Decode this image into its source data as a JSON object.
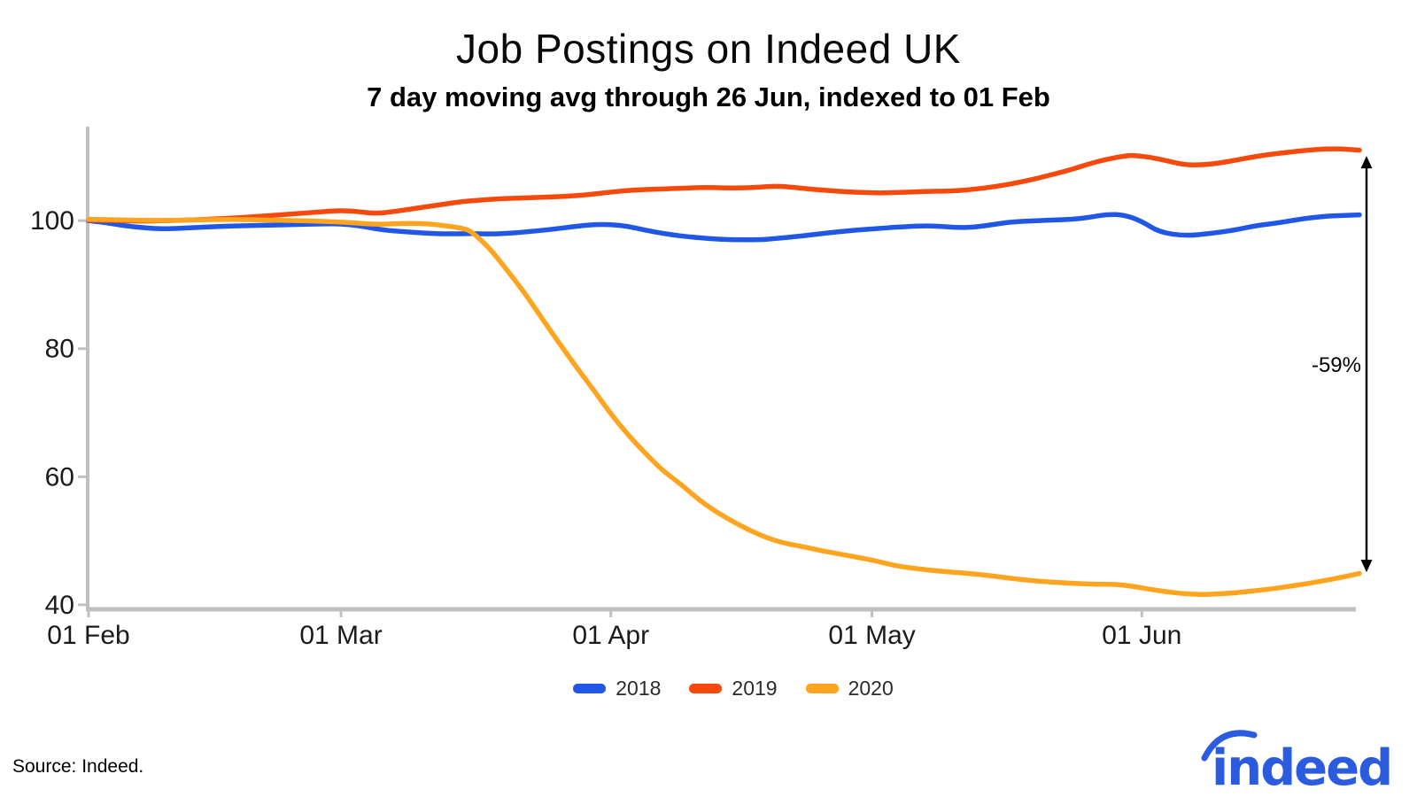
{
  "header": {
    "title": "Job Postings on Indeed UK",
    "subtitle": "7 day moving avg through 26 Jun, indexed to 01 Feb"
  },
  "footer": {
    "source": "Source: Indeed.",
    "logo_text": "indeed",
    "logo_color": "#2b5ce0"
  },
  "legend": [
    {
      "label": "2018",
      "color": "#2157e6"
    },
    {
      "label": "2019",
      "color": "#f64a0d"
    },
    {
      "label": "2020",
      "color": "#ffa41e"
    }
  ],
  "chart_data": {
    "type": "line",
    "title": "Job Postings on Indeed UK",
    "subtitle": "7 day moving avg through 26 Jun, indexed to 01 Feb",
    "x_unit": "days since 01 Feb 2020",
    "x_ticks": [
      {
        "day": 0,
        "label": "01 Feb"
      },
      {
        "day": 29,
        "label": "01 Mar"
      },
      {
        "day": 60,
        "label": "01 Apr"
      },
      {
        "day": 90,
        "label": "01 May"
      },
      {
        "day": 121,
        "label": "01 Jun"
      }
    ],
    "y_ticks": [
      100,
      80,
      60,
      40
    ],
    "ylim": [
      39.3,
      114.4
    ],
    "grid": false,
    "legend_position": "bottom",
    "axis_color": "#c0c0c0",
    "annotation": {
      "label": "-59%",
      "day": 146,
      "from_value": 110.1,
      "to_value": 45.1
    },
    "series": [
      {
        "name": "2018",
        "color": "#2157e6",
        "points": [
          [
            0,
            100.0
          ],
          [
            2,
            99.7
          ],
          [
            4,
            99.2
          ],
          [
            7,
            98.8
          ],
          [
            9,
            98.7
          ],
          [
            12,
            98.9
          ],
          [
            15,
            99.1
          ],
          [
            18,
            99.2
          ],
          [
            21,
            99.3
          ],
          [
            24,
            99.4
          ],
          [
            27,
            99.5
          ],
          [
            29,
            99.5
          ],
          [
            31,
            99.2
          ],
          [
            34,
            98.5
          ],
          [
            36,
            98.3
          ],
          [
            38,
            98.1
          ],
          [
            41,
            97.9
          ],
          [
            44,
            98.0
          ],
          [
            46,
            97.9
          ],
          [
            48,
            98.0
          ],
          [
            50,
            98.2
          ],
          [
            53,
            98.6
          ],
          [
            56,
            99.1
          ],
          [
            58,
            99.4
          ],
          [
            60,
            99.4
          ],
          [
            62,
            99.1
          ],
          [
            64,
            98.5
          ],
          [
            66,
            98.0
          ],
          [
            68,
            97.6
          ],
          [
            71,
            97.2
          ],
          [
            74,
            97.0
          ],
          [
            77,
            97.0
          ],
          [
            79,
            97.2
          ],
          [
            82,
            97.6
          ],
          [
            85,
            98.1
          ],
          [
            88,
            98.5
          ],
          [
            90,
            98.7
          ],
          [
            93,
            99.0
          ],
          [
            96,
            99.2
          ],
          [
            98,
            99.1
          ],
          [
            100,
            98.9
          ],
          [
            102,
            99.0
          ],
          [
            104,
            99.4
          ],
          [
            106,
            99.8
          ],
          [
            109,
            100.0
          ],
          [
            111,
            100.1
          ],
          [
            113,
            100.2
          ],
          [
            115,
            100.5
          ],
          [
            117,
            101.0
          ],
          [
            119,
            100.9
          ],
          [
            121,
            99.9
          ],
          [
            123,
            98.2
          ],
          [
            126,
            97.6
          ],
          [
            129,
            98.0
          ],
          [
            132,
            98.6
          ],
          [
            134,
            99.2
          ],
          [
            137,
            99.7
          ],
          [
            139,
            100.2
          ],
          [
            142,
            100.7
          ],
          [
            144,
            100.8
          ],
          [
            146,
            100.9
          ]
        ]
      },
      {
        "name": "2019",
        "color": "#f64a0d",
        "points": [
          [
            0,
            100.1
          ],
          [
            3,
            100.0
          ],
          [
            6,
            99.9
          ],
          [
            9,
            100.0
          ],
          [
            12,
            100.1
          ],
          [
            15,
            100.3
          ],
          [
            18,
            100.5
          ],
          [
            21,
            100.8
          ],
          [
            24,
            101.1
          ],
          [
            26,
            101.3
          ],
          [
            29,
            101.6
          ],
          [
            31,
            101.4
          ],
          [
            33,
            101.1
          ],
          [
            35,
            101.4
          ],
          [
            37,
            101.8
          ],
          [
            39,
            102.2
          ],
          [
            41,
            102.6
          ],
          [
            43,
            103.0
          ],
          [
            45,
            103.2
          ],
          [
            47,
            103.4
          ],
          [
            49,
            103.5
          ],
          [
            51,
            103.6
          ],
          [
            53,
            103.7
          ],
          [
            55,
            103.8
          ],
          [
            57,
            104.0
          ],
          [
            59,
            104.3
          ],
          [
            61,
            104.6
          ],
          [
            63,
            104.8
          ],
          [
            65,
            104.9
          ],
          [
            67,
            105.0
          ],
          [
            69,
            105.1
          ],
          [
            71,
            105.2
          ],
          [
            73,
            105.1
          ],
          [
            75,
            105.1
          ],
          [
            77,
            105.2
          ],
          [
            79,
            105.4
          ],
          [
            81,
            105.2
          ],
          [
            83,
            104.9
          ],
          [
            85,
            104.7
          ],
          [
            87,
            104.5
          ],
          [
            89,
            104.4
          ],
          [
            91,
            104.3
          ],
          [
            93,
            104.4
          ],
          [
            95,
            104.5
          ],
          [
            97,
            104.6
          ],
          [
            99,
            104.6
          ],
          [
            101,
            104.8
          ],
          [
            103,
            105.1
          ],
          [
            105,
            105.5
          ],
          [
            107,
            106.0
          ],
          [
            109,
            106.6
          ],
          [
            111,
            107.3
          ],
          [
            113,
            108.0
          ],
          [
            115,
            108.9
          ],
          [
            117,
            109.6
          ],
          [
            119,
            110.1
          ],
          [
            120,
            110.2
          ],
          [
            122,
            109.9
          ],
          [
            124,
            109.3
          ],
          [
            126,
            108.7
          ],
          [
            128,
            108.7
          ],
          [
            130,
            109.0
          ],
          [
            132,
            109.5
          ],
          [
            134,
            110.0
          ],
          [
            136,
            110.4
          ],
          [
            138,
            110.7
          ],
          [
            140,
            111.0
          ],
          [
            142,
            111.2
          ],
          [
            144,
            111.2
          ],
          [
            146,
            111.0
          ]
        ]
      },
      {
        "name": "2020",
        "color": "#ffa41e",
        "points": [
          [
            0,
            100.2
          ],
          [
            4,
            100.1
          ],
          [
            8,
            100.0
          ],
          [
            12,
            100.1
          ],
          [
            16,
            100.2
          ],
          [
            20,
            100.1
          ],
          [
            24,
            100.0
          ],
          [
            27,
            99.9
          ],
          [
            30,
            99.7
          ],
          [
            33,
            99.4
          ],
          [
            35,
            99.5
          ],
          [
            37,
            99.6
          ],
          [
            39,
            99.5
          ],
          [
            41,
            99.2
          ],
          [
            43,
            98.8
          ],
          [
            44,
            98.3
          ],
          [
            46,
            95.8
          ],
          [
            48,
            92.4
          ],
          [
            50,
            88.9
          ],
          [
            52,
            84.9
          ],
          [
            54,
            81.0
          ],
          [
            56,
            77.2
          ],
          [
            58,
            73.6
          ],
          [
            60,
            69.8
          ],
          [
            62,
            66.5
          ],
          [
            64,
            63.6
          ],
          [
            66,
            60.9
          ],
          [
            68,
            58.9
          ],
          [
            70,
            56.5
          ],
          [
            72,
            54.6
          ],
          [
            74,
            53.0
          ],
          [
            76,
            51.6
          ],
          [
            78,
            50.4
          ],
          [
            80,
            49.6
          ],
          [
            82,
            49.1
          ],
          [
            84,
            48.5
          ],
          [
            86,
            48.0
          ],
          [
            88,
            47.5
          ],
          [
            90,
            47.0
          ],
          [
            93,
            46.0
          ],
          [
            96,
            45.5
          ],
          [
            99,
            45.1
          ],
          [
            102,
            44.8
          ],
          [
            105,
            44.3
          ],
          [
            108,
            43.8
          ],
          [
            111,
            43.5
          ],
          [
            114,
            43.3
          ],
          [
            116,
            43.2
          ],
          [
            118,
            43.2
          ],
          [
            120,
            42.9
          ],
          [
            122,
            42.4
          ],
          [
            124,
            42.0
          ],
          [
            126,
            41.7
          ],
          [
            128,
            41.6
          ],
          [
            130,
            41.7
          ],
          [
            132,
            41.9
          ],
          [
            134,
            42.2
          ],
          [
            136,
            42.5
          ],
          [
            138,
            42.9
          ],
          [
            140,
            43.3
          ],
          [
            142,
            43.8
          ],
          [
            144,
            44.3
          ],
          [
            146,
            44.9
          ]
        ]
      }
    ]
  }
}
